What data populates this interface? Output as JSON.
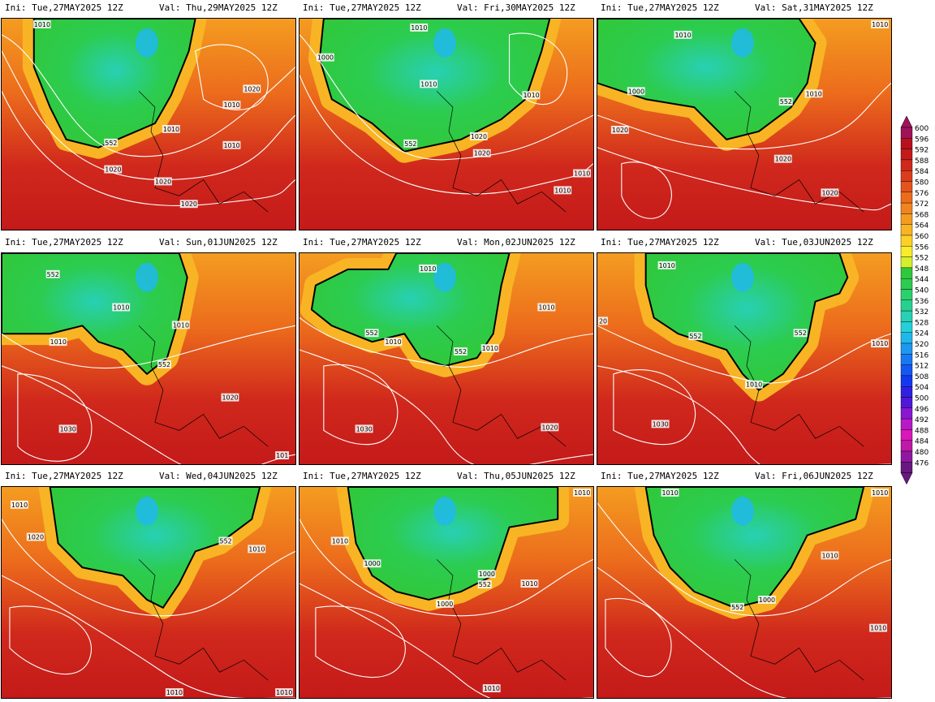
{
  "panels": [
    {
      "ini": "Ini: Tue,27MAY2025 12Z",
      "val": "Val: Thu,29MAY2025 12Z",
      "labels": [
        "1010",
        "1020",
        "1010",
        "1010",
        "1020",
        "1010",
        "552",
        "1020",
        "1020"
      ]
    },
    {
      "ini": "Ini: Tue,27MAY2025 12Z",
      "val": "Val: Fri,30MAY2025 12Z",
      "labels": [
        "1010",
        "1000",
        "1010",
        "1010",
        "1020",
        "1020",
        "552",
        "1010",
        "1010"
      ]
    },
    {
      "ini": "Ini: Tue,27MAY2025 12Z",
      "val": "Val: Sat,31MAY2025 12Z",
      "labels": [
        "1010",
        "1000",
        "1010",
        "552",
        "1010",
        "1020",
        "1020",
        "1020"
      ]
    },
    {
      "ini": "Ini: Tue,27MAY2025 12Z",
      "val": "Val: Sun,01JUN2025 12Z",
      "labels": [
        "552",
        "1010",
        "1010",
        "1010",
        "552",
        "1020",
        "1030",
        "101"
      ]
    },
    {
      "ini": "Ini: Tue,27MAY2025 12Z",
      "val": "Val: Mon,02JUN2025 12Z",
      "labels": [
        "1010",
        "552",
        "1010",
        "1010",
        "552",
        "1010",
        "1030",
        "1020"
      ]
    },
    {
      "ini": "Ini: Tue,27MAY2025 12Z",
      "val": "Val: Tue,03JUN2025 12Z",
      "labels": [
        "1010",
        "552",
        "552",
        "1010",
        "1030",
        "1010",
        "20"
      ]
    },
    {
      "ini": "Ini: Tue,27MAY2025 12Z",
      "val": "Val: Wed,04JUN2025 12Z",
      "labels": [
        "1010",
        "1020",
        "552",
        "1010",
        "1010",
        "1010"
      ]
    },
    {
      "ini": "Ini: Tue,27MAY2025 12Z",
      "val": "Val: Thu,05JUN2025 12Z",
      "labels": [
        "1010",
        "1000",
        "1000",
        "552",
        "1010",
        "1000",
        "1010",
        "1010"
      ]
    },
    {
      "ini": "Ini: Tue,27MAY2025 12Z",
      "val": "Val: Fri,06JUN2025 12Z",
      "labels": [
        "1010",
        "1010",
        "1010",
        "1000",
        "552",
        "1010"
      ]
    }
  ],
  "colorbar": {
    "values": [
      "600",
      "596",
      "592",
      "588",
      "584",
      "580",
      "576",
      "572",
      "568",
      "564",
      "560",
      "556",
      "552",
      "548",
      "544",
      "540",
      "536",
      "532",
      "528",
      "524",
      "520",
      "516",
      "512",
      "508",
      "504",
      "500",
      "496",
      "492",
      "488",
      "484",
      "480",
      "476"
    ],
    "colors": [
      "#a0125a",
      "#b8101e",
      "#c41a1a",
      "#d0281c",
      "#dc3c1c",
      "#e4541c",
      "#ec6c1c",
      "#f08420",
      "#f49c20",
      "#f8b424",
      "#fcd028",
      "#f8ec2c",
      "#d4f02c",
      "#30c83c",
      "#2ccc50",
      "#2cd06c",
      "#28d090",
      "#28d0b4",
      "#24d0d8",
      "#20b8ec",
      "#1c98f0",
      "#1878f4",
      "#1458f4",
      "#1438f0",
      "#3020e0",
      "#5018d8",
      "#8818d0",
      "#b818c8",
      "#d818b8",
      "#c018a8",
      "#9018a0",
      "#681880"
    ]
  },
  "colors": {
    "trough_outline": "#000000",
    "isobar": "#ffffff"
  }
}
